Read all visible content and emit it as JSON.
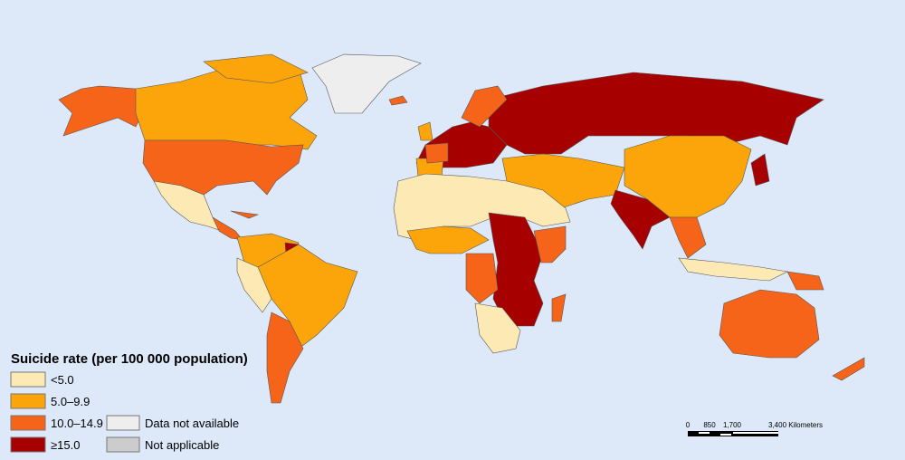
{
  "legend": {
    "title": "Suicide rate (per 100 000 population)",
    "items": [
      {
        "label": "<5.0"
      },
      {
        "label": "5.0–9.9"
      },
      {
        "label": "10.0–14.9"
      },
      {
        "label": "≥15.0"
      },
      {
        "label": "Data not available"
      },
      {
        "label": "Not applicable"
      }
    ]
  },
  "scale": {
    "labels": [
      "0",
      "850",
      "1,700",
      "3,400 Kilometers"
    ]
  }
}
